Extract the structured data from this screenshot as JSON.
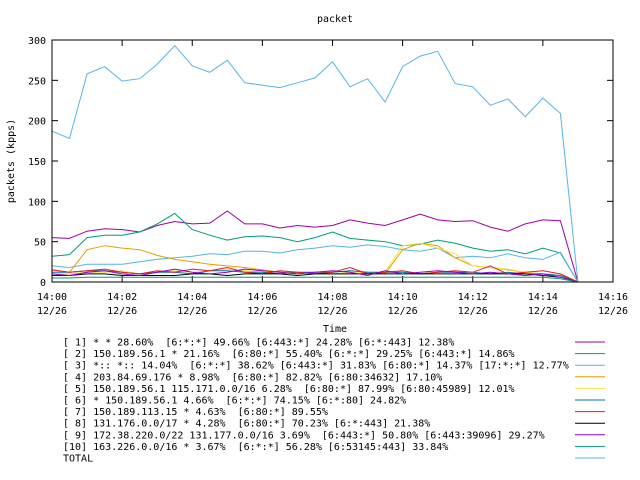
{
  "chart_data": {
    "type": "line",
    "title": "packet",
    "xlabel": "Time",
    "ylabel": "packets (kpps)",
    "x": [
      0,
      0.5,
      1,
      1.5,
      2,
      2.5,
      3,
      3.5,
      4,
      4.5,
      5,
      5.5,
      6,
      6.5,
      7,
      7.5,
      8,
      8.5,
      9,
      9.5,
      10,
      10.5,
      11,
      11.5,
      12,
      12.5,
      13,
      13.5,
      14,
      14.5,
      15
    ],
    "xlim": [
      0,
      16
    ],
    "xticks": [
      {
        "value": 0,
        "label": "14:00",
        "date": "12/26"
      },
      {
        "value": 2,
        "label": "14:02",
        "date": "12/26"
      },
      {
        "value": 4,
        "label": "14:04",
        "date": "12/26"
      },
      {
        "value": 6,
        "label": "14:06",
        "date": "12/26"
      },
      {
        "value": 8,
        "label": "14:08",
        "date": "12/26"
      },
      {
        "value": 10,
        "label": "14:10",
        "date": "12/26"
      },
      {
        "value": 12,
        "label": "14:12",
        "date": "12/26"
      },
      {
        "value": 14,
        "label": "14:14",
        "date": "12/26"
      },
      {
        "value": 16,
        "label": "14:16",
        "date": "12/26"
      }
    ],
    "ylim": [
      0,
      300
    ],
    "yticks": [
      0,
      50,
      100,
      150,
      200,
      250,
      300
    ],
    "series": [
      {
        "name": "[ 1] * * 28.60%  [6:*:*] 49.66% [6:443:*] 24.28% [6:*:443] 12.38%",
        "color": "#a000a0",
        "values": [
          55,
          54,
          63,
          66,
          65,
          62,
          70,
          75,
          72,
          73,
          88,
          72,
          72,
          67,
          70,
          68,
          70,
          77,
          73,
          70,
          77,
          84,
          77,
          75,
          76,
          68,
          63,
          72,
          77,
          76,
          0
        ]
      },
      {
        "name": "[ 2] 150.189.56.1 * 21.16%  [6:80:*] 55.40% [6:*:*] 29.25% [6:443:*] 14.86%",
        "color": "#009e73",
        "values": [
          32,
          34,
          55,
          58,
          58,
          62,
          72,
          85,
          65,
          58,
          52,
          56,
          57,
          55,
          50,
          55,
          62,
          54,
          52,
          50,
          45,
          47,
          52,
          48,
          42,
          38,
          40,
          35,
          42,
          36,
          0
        ]
      },
      {
        "name": "[ 3] *:: *:: 14.04%  [6:*:*] 38.62% [6:443:*] 31.83% [6:80:*] 14.37% [17:*:*] 12.77%",
        "color": "#56b4e9",
        "values": [
          20,
          18,
          22,
          22,
          22,
          25,
          28,
          30,
          32,
          35,
          34,
          38,
          38,
          36,
          40,
          42,
          45,
          43,
          46,
          44,
          40,
          38,
          42,
          30,
          32,
          30,
          35,
          30,
          28,
          37,
          0
        ]
      },
      {
        "name": "[ 4] 203.84.69.176 * 8.98%  [6:80:*] 82.82% [6:80:34632] 17.10%",
        "color": "#e69f00",
        "values": [
          15,
          12,
          40,
          45,
          42,
          40,
          33,
          28,
          25,
          22,
          20,
          18,
          15,
          12,
          12,
          10,
          10,
          10,
          12,
          10,
          40,
          48,
          45,
          30,
          20,
          18,
          15,
          12,
          10,
          8,
          0
        ]
      },
      {
        "name": "[ 5] 150.189.56.1 115.171.0.0/16 6.28%  [6:80:*] 87.99% [6:80:45989] 12.01%",
        "color": "#f0e442",
        "values": [
          10,
          10,
          12,
          12,
          14,
          10,
          12,
          14,
          12,
          14,
          16,
          14,
          12,
          12,
          10,
          12,
          10,
          12,
          10,
          12,
          45,
          48,
          42,
          35,
          20,
          18,
          16,
          12,
          10,
          8,
          0
        ]
      },
      {
        "name": "[ 6] * 150.189.56.1 4.66%  [6:*:*] 74.15% [6:*:80] 24.82%",
        "color": "#0072b2",
        "values": [
          12,
          12,
          14,
          14,
          12,
          10,
          12,
          12,
          10,
          14,
          14,
          12,
          12,
          10,
          12,
          12,
          12,
          14,
          12,
          12,
          12,
          10,
          12,
          12,
          12,
          10,
          12,
          10,
          10,
          8,
          0
        ]
      },
      {
        "name": "[ 7] 150.189.113.15 * 4.63%  [6:80:*] 89.55%",
        "color": "#e51e10",
        "values": [
          15,
          12,
          14,
          16,
          12,
          10,
          14,
          12,
          16,
          14,
          18,
          12,
          10,
          14,
          12,
          10,
          12,
          18,
          10,
          12,
          14,
          10,
          12,
          14,
          12,
          20,
          10,
          12,
          14,
          10,
          0
        ]
      },
      {
        "name": "[ 8] 131.176.0.0/17 * 4.28%  [6:80:*] 70.23% [6:*:443] 21.38%",
        "color": "#000000",
        "values": [
          8,
          8,
          10,
          10,
          8,
          8,
          8,
          8,
          10,
          10,
          8,
          10,
          10,
          10,
          8,
          10,
          10,
          10,
          10,
          10,
          10,
          10,
          10,
          10,
          10,
          10,
          10,
          10,
          8,
          6,
          0
        ]
      },
      {
        "name": "[ 9] 172.38.220.0/22 131.177.0.0/16 3.69%  [6:443:*] 50.80% [6:443:39096] 29.27%",
        "color": "#9400d3",
        "values": [
          10,
          8,
          12,
          14,
          10,
          8,
          12,
          16,
          12,
          10,
          12,
          16,
          14,
          12,
          10,
          12,
          14,
          12,
          8,
          14,
          10,
          12,
          14,
          12,
          10,
          12,
          10,
          8,
          10,
          6,
          0
        ]
      },
      {
        "name": "[10] 163.226.0.0/16 * 3.67%  [6:*:*] 56.28% [6:53145:443] 33.84%",
        "color": "#009e73",
        "values": [
          5,
          5,
          6,
          6,
          6,
          6,
          6,
          6,
          6,
          6,
          6,
          6,
          6,
          6,
          6,
          6,
          6,
          6,
          6,
          6,
          6,
          6,
          6,
          6,
          6,
          6,
          6,
          6,
          6,
          4,
          0
        ]
      },
      {
        "name": "TOTAL",
        "color": "#56b4e9",
        "values": [
          187,
          178,
          258,
          267,
          249,
          252,
          270,
          293,
          268,
          260,
          275,
          247,
          244,
          241,
          247,
          253,
          273,
          242,
          252,
          223,
          267,
          280,
          286,
          246,
          242,
          219,
          227,
          205,
          228,
          209,
          0
        ]
      }
    ]
  }
}
